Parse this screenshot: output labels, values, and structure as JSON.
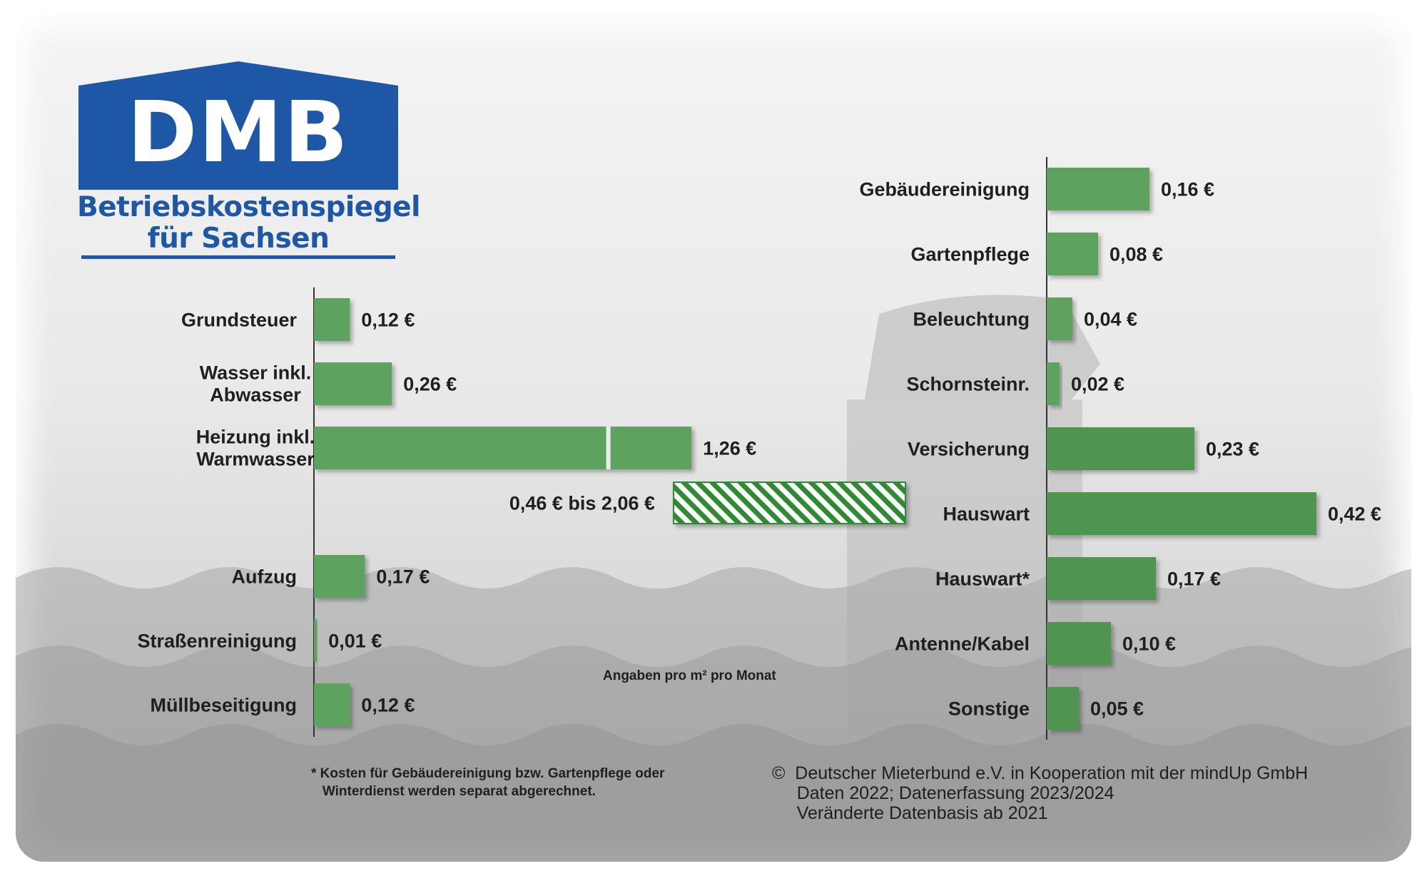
{
  "logo": {
    "letters": "DMB",
    "line1": "Betriebskostenspiegel",
    "line2": "für Sachsen"
  },
  "colors": {
    "bar": "#5da35e",
    "bar_dark": "#4f9550",
    "hatch": "#2e8b30",
    "logo_blue": "#1d57a6"
  },
  "chart_data": [
    {
      "type": "bar",
      "orientation": "horizontal",
      "categories": [
        "Grundsteuer",
        "Wasser inkl. Abwasser",
        "Heizung inkl. Warmwasser",
        "Aufzug",
        "Straßenreinigung",
        "Müllbeseitigung"
      ],
      "category_lines": [
        [
          "Grundsteuer"
        ],
        [
          "Wasser inkl.",
          "Abwasser"
        ],
        [
          "Heizung inkl.",
          "Warmwasser"
        ],
        [
          "Aufzug"
        ],
        [
          "Straßenreinigung"
        ],
        [
          "Müllbeseitigung"
        ]
      ],
      "values": [
        0.12,
        0.26,
        1.26,
        0.17,
        0.01,
        0.12
      ],
      "value_labels": [
        "0,12 €",
        "0,26 €",
        "1,26 €",
        "0,17 €",
        "0,01 €",
        "0,12 €"
      ],
      "heating_range": {
        "min": 0.46,
        "max": 2.06,
        "label": "0,46 € bis 2,06 €"
      }
    },
    {
      "type": "bar",
      "orientation": "horizontal",
      "categories": [
        "Gebäudereinigung",
        "Gartenpflege",
        "Beleuchtung",
        "Schornsteinr.",
        "Versicherung",
        "Hauswart",
        "Hauswart*",
        "Antenne/Kabel",
        "Sonstige"
      ],
      "values": [
        0.16,
        0.08,
        0.04,
        0.02,
        0.23,
        0.42,
        0.17,
        0.1,
        0.05
      ],
      "value_labels": [
        "0,16 €",
        "0,08 €",
        "0,04 €",
        "0,02 €",
        "0,23 €",
        "0,42 €",
        "0,17 €",
        "0,10 €",
        "0,05 €"
      ]
    }
  ],
  "notes": {
    "unit": "Angaben pro m² pro Monat",
    "footnote": "* Kosten für Gebäudereinigung bzw. Gartenpflege oder\n   Winterdienst werden separat abgerechnet.",
    "copyright": "©  Deutscher Mieterbund e.V. in Kooperation mit der mindUp GmbH\n     Daten 2022; Datenerfassung 2023/2024\n     Veränderte Datenbasis ab 2021"
  }
}
